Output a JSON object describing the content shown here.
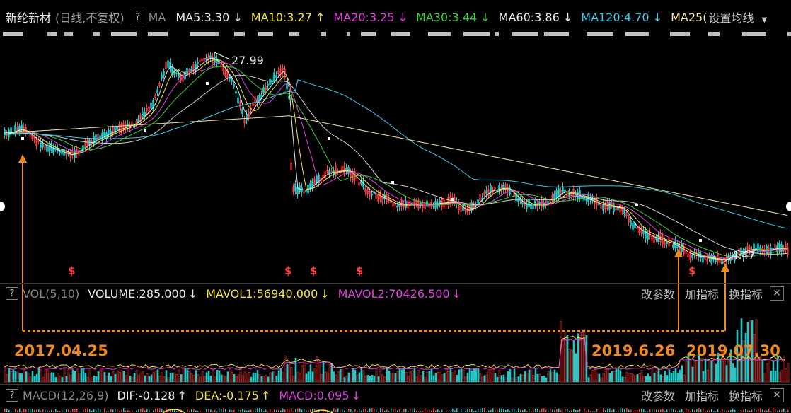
{
  "header": {
    "stock_name": "新纶新材",
    "mode": "(日线,不复权)",
    "help": "?",
    "ma_prefix": "MA",
    "ma_items": [
      {
        "label": "MA5:3.30",
        "arrow": "↓",
        "color": "#e8e8e8"
      },
      {
        "label": "MA10:3.27",
        "arrow": "↑",
        "color": "#f5e23a"
      },
      {
        "label": "MA20:3.25",
        "arrow": "↓",
        "color": "#e040e0"
      },
      {
        "label": "MA30:3.44",
        "arrow": "↓",
        "color": "#3ad23a"
      },
      {
        "label": "MA60:3.86",
        "arrow": "↓",
        "color": "#e8e8e8"
      },
      {
        "label": "MA120:4.70",
        "arrow": "↓",
        "color": "#3ac8e8"
      },
      {
        "label": "MA25(",
        "arrow": "",
        "color": "#f5e2a0"
      }
    ],
    "settings": "设置均线"
  },
  "vol_bar": {
    "help": "?",
    "name": "VOL(5,10)",
    "volume": "VOLUME:285.000",
    "volume_arrow": "↓",
    "mavol1": "MAVOL1:56940.000",
    "mavol1_arrow": "↓",
    "mavol2": "MAVOL2:70426.500",
    "mavol2_arrow": "↓",
    "btn_params": "改参数",
    "btn_add": "加指标",
    "btn_switch": "换指标",
    "close": "✕"
  },
  "macd_bar": {
    "help": "?",
    "name": "MACD(12,26,9)",
    "dif": "DIF:-0.128",
    "dif_arrow": "↑",
    "dea": "DEA:-0.175",
    "dea_arrow": "↑",
    "macd": "MACD:0.095",
    "macd_arrow": "↓",
    "btn_params": "改参数",
    "btn_add": "加指标",
    "btn_switch": "换指标",
    "close": "✕"
  },
  "annotations": {
    "date1": "2017.04.25",
    "date2": "2019.6.26",
    "date3": "2019.07.30",
    "signal_glyph": "$",
    "peak_label": "27.99",
    "low_label": "4.47"
  },
  "chart_data": {
    "type": "line",
    "title": "新纶新材",
    "series": [
      {
        "name": "MA5",
        "value": 3.3
      },
      {
        "name": "MA10",
        "value": 3.27
      },
      {
        "name": "MA20",
        "value": 3.25
      },
      {
        "name": "MA30",
        "value": 3.44
      },
      {
        "name": "MA60",
        "value": 3.86
      },
      {
        "name": "MA120",
        "value": 4.7
      }
    ],
    "price_high": 27.99,
    "price_low": 4.47,
    "volume": 285.0,
    "mavol1": 56940.0,
    "mavol2": 70426.5,
    "dif": -0.128,
    "dea": -0.175,
    "macd": 0.095,
    "marked_dates": [
      "2017.04.25",
      "2019.6.26",
      "2019.07.30"
    ]
  },
  "colors": {
    "accent_orange": "#f08a1c",
    "up_red": "#ff3b3b",
    "down_cyan": "#20c8c8"
  }
}
